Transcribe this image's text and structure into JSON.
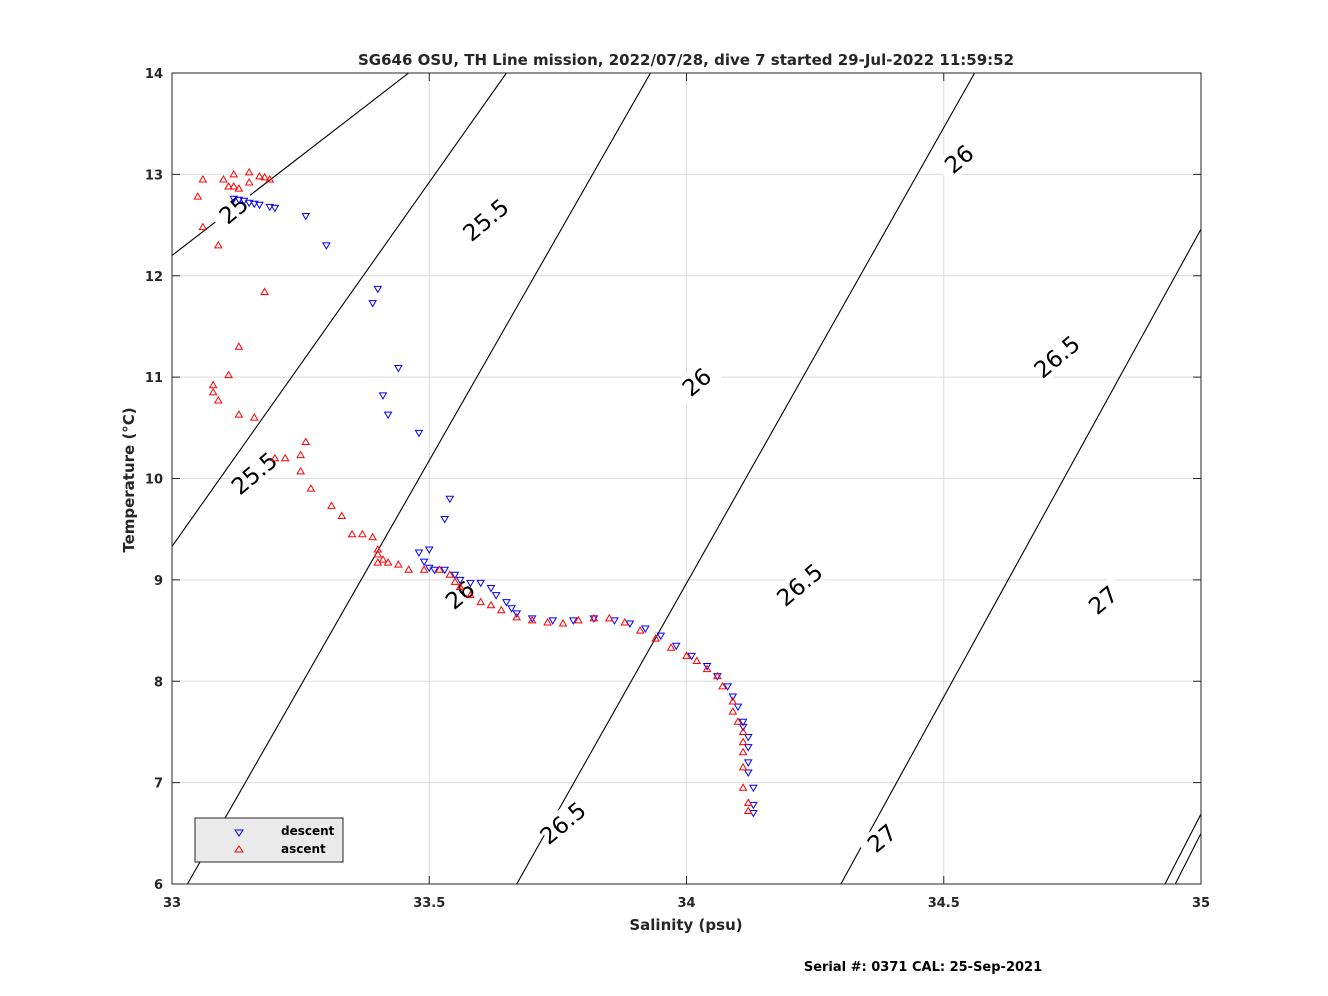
{
  "chart_data": {
    "type": "scatter",
    "title": "SG646 OSU, TH Line mission, 2022/07/28, dive 7 started 29-Jul-2022 11:59:52",
    "xlabel": "Salinity (psu)",
    "ylabel": "Temperature (°C)",
    "xlim": [
      33,
      35
    ],
    "ylim": [
      6,
      14
    ],
    "xticks": [
      "33",
      "33.5",
      "34",
      "34.5",
      "35"
    ],
    "yticks": [
      "6",
      "7",
      "8",
      "9",
      "10",
      "11",
      "12",
      "13",
      "14"
    ],
    "grid": true,
    "legend_position": "bottom-left",
    "series": [
      {
        "name": "descent",
        "color": "#0000ff",
        "marker": "triangle-down",
        "points": [
          [
            33.12,
            12.76
          ],
          [
            33.13,
            12.75
          ],
          [
            33.14,
            12.74
          ],
          [
            33.15,
            12.72
          ],
          [
            33.16,
            12.71
          ],
          [
            33.17,
            12.7
          ],
          [
            33.19,
            12.68
          ],
          [
            33.2,
            12.67
          ],
          [
            33.26,
            12.59
          ],
          [
            33.3,
            12.3
          ],
          [
            33.4,
            11.87
          ],
          [
            33.39,
            11.73
          ],
          [
            33.44,
            11.09
          ],
          [
            33.41,
            10.82
          ],
          [
            33.42,
            10.63
          ],
          [
            33.48,
            10.45
          ],
          [
            33.54,
            9.8
          ],
          [
            33.53,
            9.6
          ],
          [
            33.5,
            9.3
          ],
          [
            33.48,
            9.27
          ],
          [
            33.49,
            9.18
          ],
          [
            33.5,
            9.12
          ],
          [
            33.51,
            9.1
          ],
          [
            33.53,
            9.1
          ],
          [
            33.55,
            9.05
          ],
          [
            33.56,
            9.0
          ],
          [
            33.58,
            8.97
          ],
          [
            33.6,
            8.97
          ],
          [
            33.62,
            8.92
          ],
          [
            33.63,
            8.85
          ],
          [
            33.65,
            8.78
          ],
          [
            33.66,
            8.72
          ],
          [
            33.67,
            8.67
          ],
          [
            33.7,
            8.62
          ],
          [
            33.74,
            8.6
          ],
          [
            33.78,
            8.6
          ],
          [
            33.82,
            8.62
          ],
          [
            33.86,
            8.6
          ],
          [
            33.89,
            8.57
          ],
          [
            33.92,
            8.52
          ],
          [
            33.95,
            8.45
          ],
          [
            33.98,
            8.35
          ],
          [
            34.01,
            8.25
          ],
          [
            34.04,
            8.15
          ],
          [
            34.06,
            8.05
          ],
          [
            34.08,
            7.95
          ],
          [
            34.09,
            7.85
          ],
          [
            34.1,
            7.75
          ],
          [
            34.11,
            7.6
          ],
          [
            34.11,
            7.55
          ],
          [
            34.12,
            7.45
          ],
          [
            34.12,
            7.35
          ],
          [
            34.12,
            7.2
          ],
          [
            34.12,
            7.1
          ],
          [
            34.13,
            6.95
          ],
          [
            34.13,
            6.78
          ],
          [
            34.13,
            6.7
          ]
        ]
      },
      {
        "name": "ascent",
        "color": "#ff0000",
        "marker": "triangle-up",
        "points": [
          [
            33.05,
            12.78
          ],
          [
            33.06,
            12.95
          ],
          [
            33.1,
            12.95
          ],
          [
            33.11,
            12.88
          ],
          [
            33.12,
            13.0
          ],
          [
            33.12,
            12.88
          ],
          [
            33.13,
            12.86
          ],
          [
            33.15,
            13.02
          ],
          [
            33.15,
            12.92
          ],
          [
            33.17,
            12.98
          ],
          [
            33.18,
            12.97
          ],
          [
            33.19,
            12.95
          ],
          [
            33.06,
            12.48
          ],
          [
            33.09,
            12.3
          ],
          [
            33.18,
            11.84
          ],
          [
            33.13,
            11.3
          ],
          [
            33.11,
            11.02
          ],
          [
            33.08,
            10.92
          ],
          [
            33.08,
            10.85
          ],
          [
            33.09,
            10.77
          ],
          [
            33.13,
            10.63
          ],
          [
            33.16,
            10.6
          ],
          [
            33.2,
            10.2
          ],
          [
            33.22,
            10.2
          ],
          [
            33.26,
            10.36
          ],
          [
            33.25,
            10.23
          ],
          [
            33.25,
            10.07
          ],
          [
            33.27,
            9.9
          ],
          [
            33.31,
            9.73
          ],
          [
            33.33,
            9.63
          ],
          [
            33.35,
            9.45
          ],
          [
            33.37,
            9.45
          ],
          [
            33.39,
            9.42
          ],
          [
            33.4,
            9.3
          ],
          [
            33.4,
            9.25
          ],
          [
            33.41,
            9.2
          ],
          [
            33.42,
            9.17
          ],
          [
            33.4,
            9.17
          ],
          [
            33.44,
            9.15
          ],
          [
            33.46,
            9.1
          ],
          [
            33.49,
            9.1
          ],
          [
            33.52,
            9.1
          ],
          [
            33.54,
            9.05
          ],
          [
            33.55,
            8.98
          ],
          [
            33.56,
            8.93
          ],
          [
            33.58,
            8.85
          ],
          [
            33.6,
            8.78
          ],
          [
            33.62,
            8.75
          ],
          [
            33.64,
            8.7
          ],
          [
            33.67,
            8.63
          ],
          [
            33.7,
            8.6
          ],
          [
            33.73,
            8.58
          ],
          [
            33.76,
            8.57
          ],
          [
            33.79,
            8.6
          ],
          [
            33.82,
            8.62
          ],
          [
            33.85,
            8.62
          ],
          [
            33.88,
            8.58
          ],
          [
            33.91,
            8.5
          ],
          [
            33.94,
            8.42
          ],
          [
            33.97,
            8.33
          ],
          [
            34.0,
            8.25
          ],
          [
            34.02,
            8.2
          ],
          [
            34.04,
            8.12
          ],
          [
            34.06,
            8.05
          ],
          [
            34.07,
            7.95
          ],
          [
            34.09,
            7.8
          ],
          [
            34.09,
            7.7
          ],
          [
            34.1,
            7.6
          ],
          [
            34.11,
            7.5
          ],
          [
            34.11,
            7.4
          ],
          [
            34.11,
            7.3
          ],
          [
            34.11,
            7.15
          ],
          [
            34.11,
            6.95
          ],
          [
            34.12,
            6.8
          ],
          [
            34.12,
            6.72
          ]
        ]
      }
    ],
    "contours": {
      "color": "#000000",
      "labels": [
        "25.5",
        "25.5",
        "26",
        "26",
        "26",
        "26",
        "26.5",
        "26.5",
        "26.5",
        "27",
        "27",
        "25"
      ],
      "lines": [
        [
          [
            33.0,
            12.2
          ],
          [
            33.46,
            14.0
          ]
        ],
        [
          [
            33.0,
            9.33
          ],
          [
            33.65,
            14.0
          ]
        ],
        [
          [
            33.03,
            6.0
          ],
          [
            33.93,
            14.0
          ]
        ],
        [
          [
            33.67,
            6.0
          ],
          [
            34.56,
            14.0
          ]
        ],
        [
          [
            34.3,
            6.0
          ],
          [
            35.0,
            12.46
          ]
        ],
        [
          [
            34.93,
            6.0
          ],
          [
            35.0,
            6.69
          ]
        ],
        [
          [
            34.95,
            6.0
          ],
          [
            35.0,
            6.5
          ]
        ]
      ]
    },
    "legend": {
      "entries": [
        "descent",
        "ascent"
      ]
    },
    "footer": "Serial #: 0371  CAL: 25-Sep-2021"
  }
}
